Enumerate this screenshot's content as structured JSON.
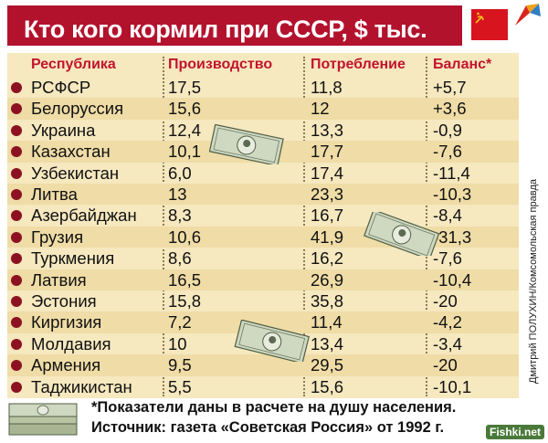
{
  "title": "Кто кого кормил при СССР, $ тыс.",
  "headers": {
    "republic": "Республика",
    "production": "Производство",
    "consumption": "Потребление",
    "balance": "Баланс*"
  },
  "chart_data": {
    "type": "table",
    "title": "Кто кого кормил при СССР, $ тыс.",
    "columns": [
      "Республика",
      "Производство",
      "Потребление",
      "Баланс*"
    ],
    "rows": [
      {
        "name": "РСФСР",
        "production": "17,5",
        "consumption": "11,8",
        "balance": "+5,7"
      },
      {
        "name": "Белоруссия",
        "production": "15,6",
        "consumption": "12",
        "balance": "+3,6"
      },
      {
        "name": "Украина",
        "production": "12,4",
        "consumption": "13,3",
        "balance": "-0,9"
      },
      {
        "name": "Казахстан",
        "production": "10,1",
        "consumption": "17,7",
        "balance": "-7,6"
      },
      {
        "name": "Узбекистан",
        "production": "6,0",
        "consumption": "17,4",
        "balance": "-11,4"
      },
      {
        "name": "Литва",
        "production": "13",
        "consumption": "23,3",
        "balance": "-10,3"
      },
      {
        "name": "Азербайджан",
        "production": "8,3",
        "consumption": "16,7",
        "balance": "-8,4"
      },
      {
        "name": "Грузия",
        "production": "10,6",
        "consumption": "41,9",
        "balance": "-31,3"
      },
      {
        "name": "Туркмения",
        "production": "8,6",
        "consumption": "16,2",
        "balance": "-7,6"
      },
      {
        "name": "Латвия",
        "production": "16,5",
        "consumption": "26,9",
        "balance": "-10,4"
      },
      {
        "name": "Эстония",
        "production": "15,8",
        "consumption": "35,8",
        "balance": "-20"
      },
      {
        "name": "Киргизия",
        "production": "7,2",
        "consumption": "11,4",
        "balance": "-4,2"
      },
      {
        "name": "Молдавия",
        "production": "10",
        "consumption": "13,4",
        "balance": "-3,4"
      },
      {
        "name": "Армения",
        "production": "9,5",
        "consumption": "29,5",
        "balance": "-20"
      },
      {
        "name": "Таджикистан",
        "production": "5,5",
        "consumption": "15,6",
        "balance": "-10,1"
      }
    ]
  },
  "footnote": "*Показатели даны в расчете на душу населения.",
  "source": "Источник: газета «Советская Россия» от 1992 г.",
  "credit": "Дмитрий ПОЛУХИН/Комсомольская правда",
  "watermark": "Fishki.net",
  "colors": {
    "title_bg": "#b3122d",
    "header_text": "#c2142e",
    "table_bg": "#f6e8bf",
    "row_alt": "#efdca6",
    "bullet": "#8c1222"
  }
}
